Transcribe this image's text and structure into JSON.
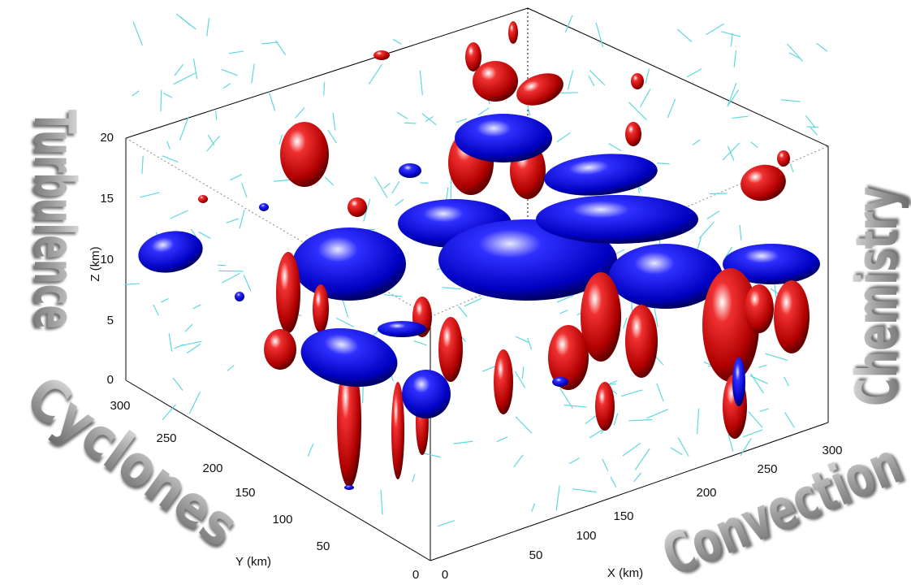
{
  "axes": {
    "z": {
      "label": "Z (km)",
      "ticks": [
        0,
        5,
        10,
        15,
        20
      ]
    },
    "y": {
      "label": "Y (km)",
      "ticks": [
        0,
        50,
        100,
        150,
        200,
        250,
        300
      ]
    },
    "x": {
      "label": "X (km)",
      "ticks": [
        0,
        50,
        100,
        150,
        200,
        250,
        300
      ]
    }
  },
  "words": {
    "left": "Turbulence",
    "bottom_left": "Cyclones",
    "bottom_right": "Convection",
    "right": "Chemistry"
  }
}
